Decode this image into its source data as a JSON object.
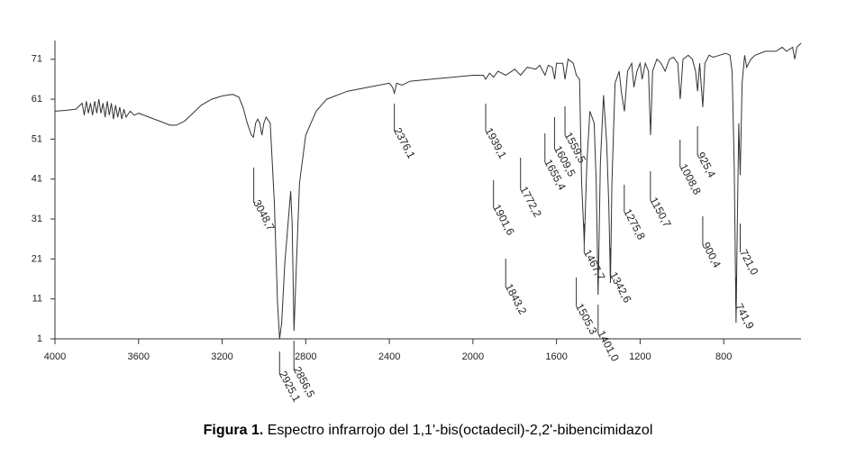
{
  "chart_data": {
    "type": "line",
    "caption_label": "Figura 1.",
    "caption_text": "Espectro infrarrojo del 1,1'-bis(octadecil)-2,2'-bibencimidazol",
    "xlim": [
      4000,
      430
    ],
    "ylim": [
      1,
      75
    ],
    "xticks": [
      4000,
      3600,
      3200,
      2800,
      2400,
      2000,
      1600,
      1200,
      800
    ],
    "yticks": [
      1,
      11,
      21,
      31,
      41,
      51,
      61,
      71
    ],
    "x": [
      4000,
      3950,
      3900,
      3870,
      3860,
      3850,
      3840,
      3830,
      3820,
      3810,
      3800,
      3790,
      3780,
      3770,
      3760,
      3750,
      3740,
      3730,
      3720,
      3710,
      3700,
      3690,
      3680,
      3670,
      3660,
      3640,
      3620,
      3600,
      3550,
      3500,
      3450,
      3420,
      3380,
      3340,
      3300,
      3250,
      3200,
      3150,
      3120,
      3100,
      3080,
      3060,
      3050,
      3040,
      3030,
      3020,
      3010,
      3000,
      2990,
      2970,
      2950,
      2935,
      2925,
      2915,
      2900,
      2880,
      2872,
      2865,
      2856,
      2848,
      2830,
      2800,
      2750,
      2700,
      2600,
      2500,
      2400,
      2385,
      2376,
      2365,
      2340,
      2300,
      2200,
      2100,
      2000,
      1950,
      1939,
      1920,
      1901,
      1880,
      1843,
      1800,
      1772,
      1740,
      1700,
      1680,
      1655,
      1640,
      1620,
      1609,
      1600,
      1570,
      1559,
      1545,
      1520,
      1505,
      1490,
      1480,
      1467,
      1455,
      1440,
      1420,
      1410,
      1401,
      1390,
      1375,
      1360,
      1350,
      1342,
      1335,
      1320,
      1300,
      1290,
      1275,
      1260,
      1240,
      1230,
      1215,
      1200,
      1190,
      1175,
      1160,
      1150,
      1140,
      1120,
      1100,
      1080,
      1060,
      1040,
      1020,
      1008,
      995,
      970,
      950,
      935,
      925,
      915,
      900,
      890,
      870,
      850,
      820,
      790,
      770,
      760,
      750,
      741,
      735,
      728,
      721,
      712,
      700,
      690,
      670,
      650,
      600,
      550,
      520,
      500,
      470,
      460,
      450,
      430
    ],
    "series": [
      {
        "color": "#333333",
        "values": [
          58,
          58.2,
          58.5,
          60,
          57,
          60.5,
          57.5,
          60,
          57,
          60.5,
          57.5,
          61,
          57.5,
          60,
          56.5,
          60.5,
          57,
          60,
          56,
          59.5,
          56.5,
          59,
          56,
          58.5,
          56.5,
          58,
          57,
          57.5,
          56.5,
          55.5,
          54.5,
          54.5,
          55.5,
          57.5,
          59.5,
          61,
          61.8,
          62.2,
          61.5,
          59,
          55,
          52,
          51.5,
          55,
          56,
          55,
          52,
          55,
          56.5,
          55,
          35,
          10,
          1,
          5,
          20,
          33,
          38,
          30,
          3,
          15,
          40,
          52,
          58,
          61,
          63,
          64,
          65,
          64,
          62.5,
          65,
          64.5,
          65.5,
          66,
          66.5,
          67,
          67,
          66,
          67.5,
          66.5,
          68,
          67,
          68.5,
          67,
          69,
          68.5,
          69.5,
          67,
          69.5,
          69,
          66,
          70,
          70,
          66,
          71,
          70,
          67,
          66,
          40,
          25,
          45,
          58,
          55,
          40,
          12,
          45,
          62,
          50,
          35,
          15,
          40,
          65,
          68,
          63,
          58,
          68,
          70,
          64,
          68,
          70,
          66,
          70,
          68,
          52,
          68,
          71,
          70,
          68,
          71,
          71.5,
          70,
          61,
          71,
          72,
          71,
          68,
          63,
          70,
          59,
          70,
          72,
          71.5,
          72,
          72.5,
          72,
          68,
          45,
          5,
          30,
          55,
          42,
          65,
          72,
          69,
          71,
          72,
          73,
          73,
          74,
          73,
          74,
          71,
          74,
          75
        ]
      }
    ],
    "annotations": [
      {
        "value": 3048.7,
        "label": "3048,7"
      },
      {
        "value": 2925.1,
        "label": "2925,1"
      },
      {
        "value": 2856.5,
        "label": "2856,5"
      },
      {
        "value": 2376.1,
        "label": "2376,1"
      },
      {
        "value": 1939.1,
        "label": "1939,1"
      },
      {
        "value": 1901.6,
        "label": "1901,6"
      },
      {
        "value": 1843.2,
        "label": "1843,2"
      },
      {
        "value": 1772.2,
        "label": "1772,2"
      },
      {
        "value": 1655.4,
        "label": "1655,4"
      },
      {
        "value": 1609.5,
        "label": "1609,5"
      },
      {
        "value": 1559.5,
        "label": "1559,5"
      },
      {
        "value": 1505.3,
        "label": "1505,3"
      },
      {
        "value": 1467.7,
        "label": "1467,7"
      },
      {
        "value": 1401.0,
        "label": "1401,0"
      },
      {
        "value": 1342.6,
        "label": "1342,6"
      },
      {
        "value": 1275.8,
        "label": "1275,8"
      },
      {
        "value": 1150.7,
        "label": "1150,7"
      },
      {
        "value": 1008.8,
        "label": "1008,8"
      },
      {
        "value": 925.4,
        "label": "925,4"
      },
      {
        "value": 900.4,
        "label": "900,4"
      },
      {
        "value": 741.9,
        "label": "741,9"
      },
      {
        "value": 721.0,
        "label": "721,0"
      }
    ]
  }
}
